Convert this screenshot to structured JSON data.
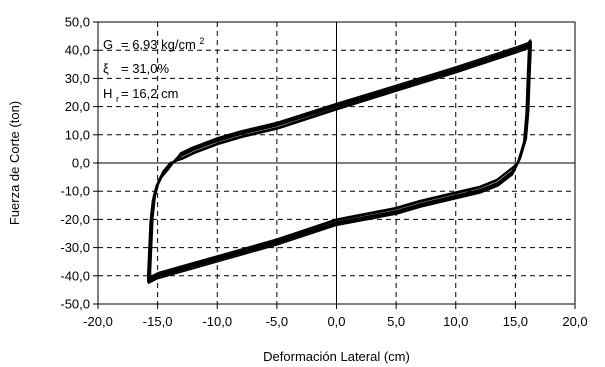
{
  "chart_data": {
    "type": "line",
    "title": "",
    "xlabel": "Deformación Lateral (cm)",
    "ylabel": "Fuerza de Corte (ton)",
    "xlim": [
      -20,
      20
    ],
    "ylim": [
      -50,
      50
    ],
    "x_ticks": [
      "-20,0",
      "-15,0",
      "-10,0",
      "-5,0",
      "0,0",
      "5,0",
      "10,0",
      "15,0",
      "20,0"
    ],
    "y_ticks": [
      "50,0",
      "40,0",
      "30,0",
      "20,0",
      "10,0",
      "0,0",
      "-10,0",
      "-20,0",
      "-30,0",
      "-40,0",
      "-50,0"
    ],
    "grid": "dashed",
    "annotations": {
      "g_label": "G",
      "g_value": "= 6,93 kg/cm",
      "g_exp": "2",
      "xi_label": "ξ",
      "xi_value": "= 31,0%",
      "h_label": "H",
      "h_sub": "r",
      "h_value": "= 16,2 cm"
    },
    "series": [
      {
        "upper_branch": {
          "x": [
            -15.7,
            -15.5,
            -15.3,
            -15.0,
            -14.6,
            -14.0,
            -13.0,
            -12.0,
            -10.0,
            -8.0,
            -5.0,
            0.0,
            5.0,
            10.0,
            15.0,
            16.0,
            16.2
          ],
          "y": [
            -39.0,
            -20.0,
            -12.5,
            -7.5,
            -4.0,
            -1.0,
            2.5,
            4.5,
            7.7,
            10.2,
            13.2,
            20.0,
            26.5,
            33.0,
            40.0,
            41.5,
            42.5
          ]
        },
        "lower_branch": {
          "x": [
            16.2,
            16.1,
            16.0,
            15.8,
            15.3,
            14.7,
            13.5,
            12.0,
            10.0,
            7.0,
            5.0,
            0.0,
            -5.0,
            -10.0,
            -15.0,
            -15.7
          ],
          "y": [
            40.0,
            30.0,
            18.0,
            8.0,
            1.0,
            -3.0,
            -7.0,
            -9.5,
            -11.5,
            -14.5,
            -17.0,
            -21.0,
            -28.0,
            -34.0,
            -40.0,
            -41.5
          ]
        }
      }
    ]
  }
}
